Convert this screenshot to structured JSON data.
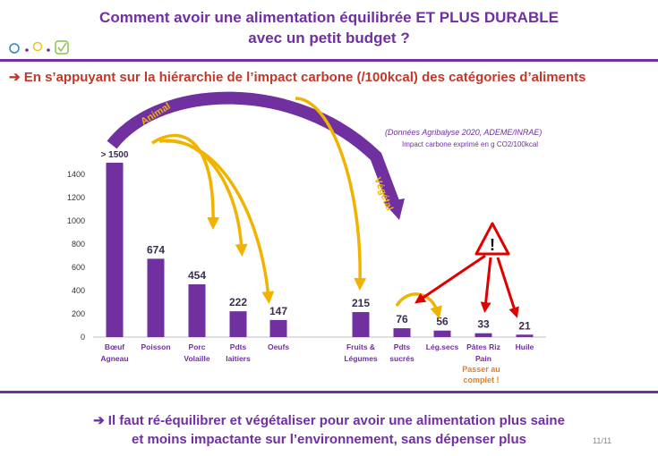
{
  "slide": {
    "title_line1": "Comment avoir une alimentation équilibrée ET PLUS DURABLE",
    "title_line2": "avec un petit budget ?",
    "subtitle": "➔ En s’appuyant sur la hiérarchie de l’impact carbone (/100kcal) des catégories d’aliments",
    "source": "(Données Agribalyse 2020, ADEME/INRAE)",
    "conclusion_line1": "➔ Il faut ré-équilibrer et végétaliser pour avoir une alimentation plus saine",
    "conclusion_line2": "et moins impactante sur l’environnement, sans dépenser plus",
    "page": "11/11",
    "accent_color": "#7030a0",
    "arrow_color": "#f0b400",
    "warning_color": "#e00000"
  },
  "chart_data": {
    "type": "bar",
    "ylabel": "Impact carbone exprimé en g CO2/100kcal",
    "ylim": [
      0,
      1500
    ],
    "yticks": [
      0,
      200,
      400,
      600,
      800,
      1000,
      1200,
      1400
    ],
    "groups": {
      "animal": "Animal",
      "vegetal": "Végétal"
    },
    "categories": [
      {
        "label": [
          "Bœuf",
          "Agneau"
        ],
        "value": 1500,
        "data_label": "> 1500",
        "group": "animal"
      },
      {
        "label": [
          "Poisson"
        ],
        "value": 674,
        "data_label": "674",
        "group": "animal"
      },
      {
        "label": [
          "Porc",
          "Volaille"
        ],
        "value": 454,
        "data_label": "454",
        "group": "animal"
      },
      {
        "label": [
          "Pdts",
          "laitiers"
        ],
        "value": 222,
        "data_label": "222",
        "group": "animal"
      },
      {
        "label": [
          "Oeufs"
        ],
        "value": 147,
        "data_label": "147",
        "group": "animal"
      },
      {
        "label": [
          "Fruits &",
          "Légumes"
        ],
        "value": 215,
        "data_label": "215",
        "group": "vegetal"
      },
      {
        "label": [
          "Pdts",
          "sucrés"
        ],
        "value": 76,
        "data_label": "76",
        "group": "vegetal"
      },
      {
        "label": [
          "Lég.secs"
        ],
        "value": 56,
        "data_label": "56",
        "group": "vegetal"
      },
      {
        "label": [
          "Pâtes Riz",
          "Pain"
        ],
        "value": 33,
        "data_label": "33",
        "group": "vegetal"
      },
      {
        "label": [
          "Huile"
        ],
        "value": 21,
        "data_label": "21",
        "group": "vegetal"
      }
    ],
    "bar_color": "#7030a0",
    "annotation": [
      "Passer au",
      "complet !"
    ],
    "annotation_arrow": "↓",
    "warning_symbol": "!"
  }
}
